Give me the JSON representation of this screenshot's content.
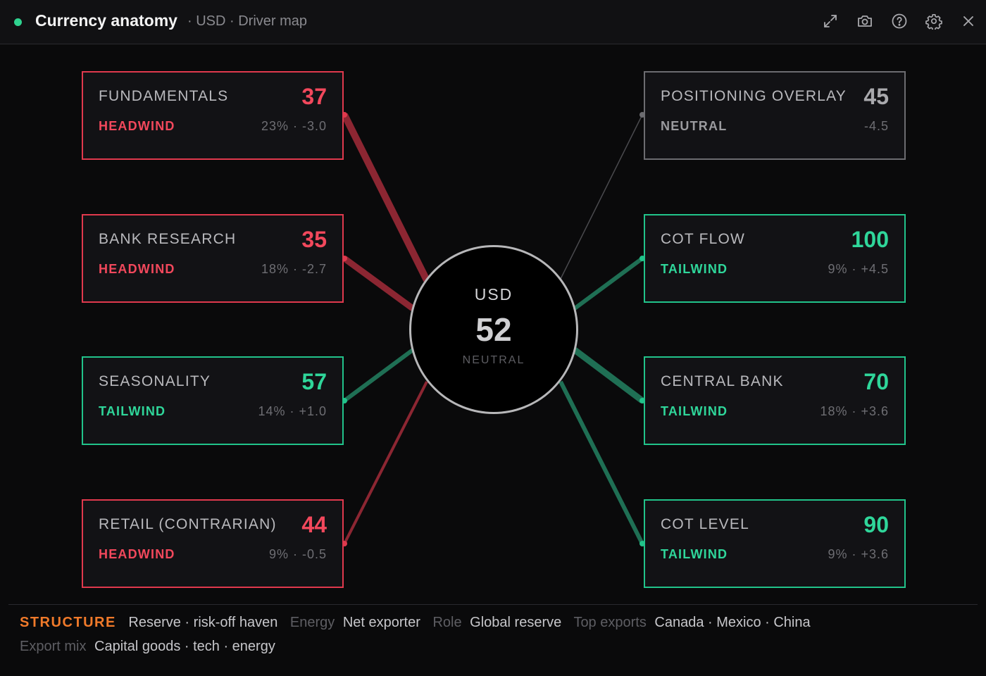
{
  "window": {
    "title": "Currency anatomy",
    "subtitle": "· USD · Driver map",
    "icons": [
      "expand-icon",
      "camera-icon",
      "help-icon",
      "gear-icon",
      "close-icon"
    ]
  },
  "colors": {
    "headwind": "#e0394d",
    "tailwind": "#21c38a",
    "neutral": "#6c6c70",
    "status": "#2fd28f",
    "structure": "#f07a2a"
  },
  "center": {
    "currency": "USD",
    "score": "52",
    "state": "NEUTRAL"
  },
  "drivers": {
    "fundamentals": {
      "name": "FUNDAMENTALS",
      "score": "37",
      "signal": "HEADWIND",
      "meta": "23% · -3.0"
    },
    "bank_research": {
      "name": "BANK RESEARCH",
      "score": "35",
      "signal": "HEADWIND",
      "meta": "18% · -2.7"
    },
    "seasonality": {
      "name": "SEASONALITY",
      "score": "57",
      "signal": "TAILWIND",
      "meta": "14% · +1.0"
    },
    "retail": {
      "name": "RETAIL (CONTRARIAN)",
      "score": "44",
      "signal": "HEADWIND",
      "meta": "9% · -0.5"
    },
    "positioning": {
      "name": "POSITIONING OVERLAY",
      "score": "45",
      "signal": "NEUTRAL",
      "meta": "-4.5"
    },
    "cot_flow": {
      "name": "COT FLOW",
      "score": "100",
      "signal": "TAILWIND",
      "meta": "9% · +4.5"
    },
    "central_bank": {
      "name": "CENTRAL BANK",
      "score": "70",
      "signal": "TAILWIND",
      "meta": "18% · +3.6"
    },
    "cot_level": {
      "name": "COT LEVEL",
      "score": "90",
      "signal": "TAILWIND",
      "meta": "9% · +3.6"
    }
  },
  "structure": {
    "label": "STRUCTURE",
    "profile": "Reserve · risk-off haven",
    "energy_label": "Energy",
    "energy": "Net exporter",
    "role_label": "Role",
    "role": "Global reserve",
    "exports_label": "Top exports",
    "exports": "Canada · Mexico · China",
    "mix_label": "Export mix",
    "mix": "Capital goods · tech · energy"
  }
}
